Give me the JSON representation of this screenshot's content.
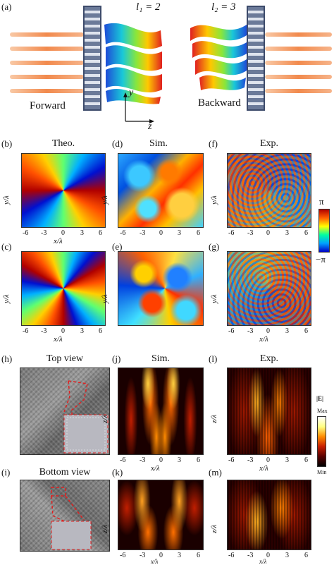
{
  "panel_labels": {
    "a": "(a)",
    "b": "(b)",
    "c": "(c)",
    "d": "(d)",
    "e": "(e)",
    "f": "(f)",
    "g": "(g)",
    "h": "(h)",
    "i": "(i)",
    "j": "(j)",
    "k": "(k)",
    "l": "(l)",
    "m": "(m)"
  },
  "schematic": {
    "l1": "l₁ = 2",
    "l2": "l₂ = 3",
    "forward": "Forward",
    "backward": "Backward",
    "y": "y",
    "z": "z"
  },
  "columns": {
    "theo": "Theo.",
    "sim": "Sim.",
    "exp": "Exp.",
    "top_view": "Top view",
    "bottom_view": "Bottom view",
    "sim2": "Sim.",
    "exp2": "Exp."
  },
  "axes": {
    "x": "x/λ",
    "y": "y/λ",
    "z": "z/λ",
    "ticks_x": [
      "-6",
      "-3",
      "0",
      "3",
      "6"
    ],
    "ticks_y": [
      "6",
      "3",
      "0",
      "-3",
      "-6"
    ]
  },
  "colorbars": {
    "phase_max": "π",
    "phase_min": "−π",
    "field_label": "|E|",
    "field_max": "Max",
    "field_min": "Min"
  },
  "colors": {
    "phase_scale": [
      "#0000c8",
      "#00a0ff",
      "#00ffa0",
      "#ffff00",
      "#ff6000",
      "#b00000"
    ],
    "field_scale": [
      "#000000",
      "#5a0000",
      "#c81e00",
      "#ff8c00",
      "#ffff80",
      "#ffffff"
    ]
  }
}
